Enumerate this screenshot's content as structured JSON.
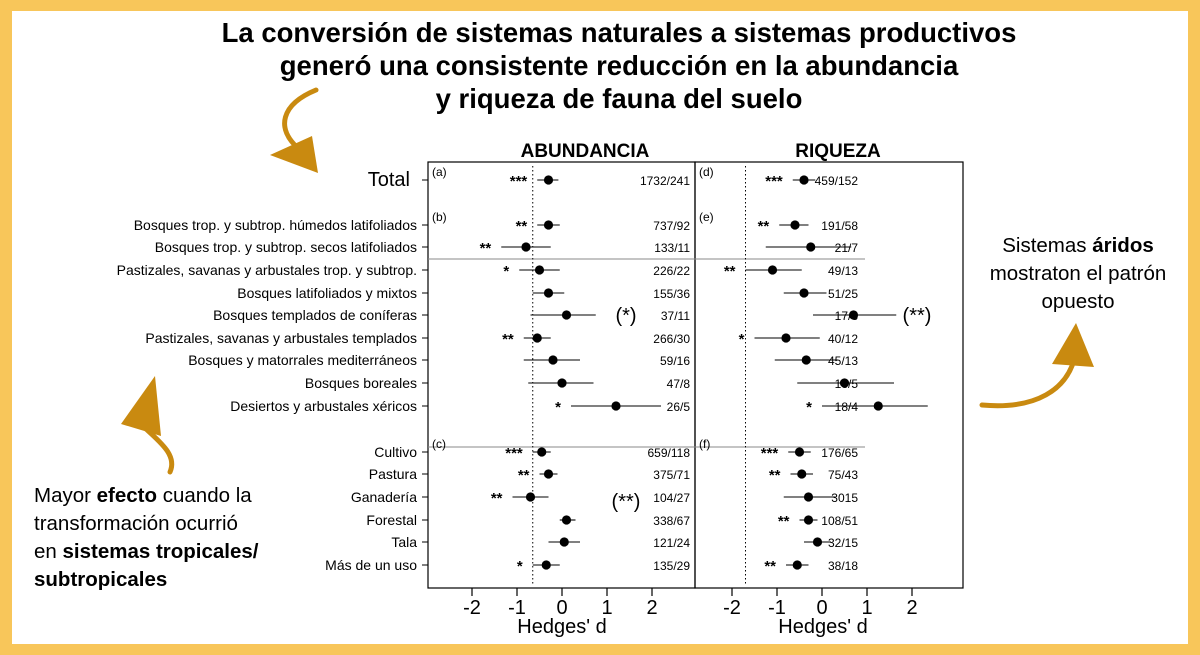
{
  "title": {
    "line1": "La conversión de sistemas naturales a sistemas productivos",
    "line2": "generó una consistente reducción en la abundancia",
    "line3": "y riqueza de fauna del suelo"
  },
  "colors": {
    "frame": "#f8c65a",
    "arrow": "#c98a10"
  },
  "note_left": {
    "t1": "Mayor ",
    "b1": "efecto",
    "t2": " cuando la",
    "line2": "transformación ocurrió",
    "t3": "en ",
    "b2": "sistemas tropicales/",
    "b3": "subtropicales"
  },
  "note_right": {
    "t1": "Sistemas ",
    "b1": "áridos",
    "line2": "mostraton el patrón",
    "line3": "opuesto"
  },
  "chart_data": {
    "type": "forest",
    "panels": [
      {
        "title": "ABUNDANCIA",
        "xlabel": "Hedges' d",
        "xlim": [
          -2.6,
          2.6
        ],
        "ticks": [
          "-2",
          "-1",
          "0",
          "1",
          "2"
        ],
        "ref_line": -0.65,
        "rows": [
          {
            "label": "Total",
            "est": -0.3,
            "lo": -0.55,
            "hi": -0.08,
            "sig": "***",
            "n": "1732/241",
            "panel_letter": "(a)"
          },
          {
            "label": "Bosques trop. y subtrop. húmedos latifoliados",
            "est": -0.3,
            "lo": -0.55,
            "hi": -0.05,
            "sig": "**",
            "n": "737/92",
            "panel_letter": "(b)"
          },
          {
            "label": "Bosques trop. y subtrop. secos latifoliados",
            "est": -0.8,
            "lo": -1.35,
            "hi": -0.25,
            "sig": "**",
            "n": "133/11"
          },
          {
            "label": "Pastizales, savanas y arbustales trop. y subtrop.",
            "est": -0.5,
            "lo": -0.95,
            "hi": -0.05,
            "sig": "*",
            "n": "226/22"
          },
          {
            "label": "Bosques latifoliados y mixtos",
            "est": -0.3,
            "lo": -0.65,
            "hi": 0.05,
            "sig": "",
            "n": "155/36"
          },
          {
            "label": "Bosques templados de coníferas",
            "est": 0.1,
            "lo": -0.7,
            "hi": 0.75,
            "sig": "",
            "n": "37/11",
            "group_sig": "(*)"
          },
          {
            "label": "Pastizales, savanas y arbustales templados",
            "est": -0.55,
            "lo": -0.85,
            "hi": -0.25,
            "sig": "**",
            "n": "266/30"
          },
          {
            "label": "Bosques y matorrales mediterráneos",
            "est": -0.2,
            "lo": -0.85,
            "hi": 0.4,
            "sig": "",
            "n": "59/16"
          },
          {
            "label": "Bosques boreales",
            "est": 0.0,
            "lo": -0.75,
            "hi": 0.7,
            "sig": "",
            "n": "47/8"
          },
          {
            "label": "Desiertos y arbustales xéricos",
            "est": 1.2,
            "lo": 0.2,
            "hi": 2.2,
            "sig": "*",
            "n": "26/5"
          },
          {
            "label": "Cultivo",
            "est": -0.45,
            "lo": -0.65,
            "hi": -0.25,
            "sig": "***",
            "n": "659/118",
            "panel_letter": "(c)"
          },
          {
            "label": "Pastura",
            "est": -0.3,
            "lo": -0.5,
            "hi": -0.1,
            "sig": "**",
            "n": "375/71"
          },
          {
            "label": "Ganadería",
            "est": -0.7,
            "lo": -1.1,
            "hi": -0.3,
            "sig": "**",
            "n": "104/27",
            "group_sig": "(**)"
          },
          {
            "label": "Forestal",
            "est": 0.1,
            "lo": -0.05,
            "hi": 0.3,
            "sig": "",
            "n": "338/67"
          },
          {
            "label": "Tala",
            "est": 0.05,
            "lo": -0.3,
            "hi": 0.4,
            "sig": "",
            "n": "121/24"
          },
          {
            "label": "Más de un uso",
            "est": -0.35,
            "lo": -0.65,
            "hi": -0.05,
            "sig": "*",
            "n": "135/29"
          }
        ]
      },
      {
        "title": "RIQUEZA",
        "xlabel": "Hedges' d",
        "xlim": [
          -2.6,
          2.6
        ],
        "ticks": [
          "-2",
          "-1",
          "0",
          "1",
          "2"
        ],
        "ref_line": -1.7,
        "rows": [
          {
            "est": -0.4,
            "lo": -0.65,
            "hi": -0.15,
            "sig": "***",
            "n": "459/152",
            "panel_letter": "(d)"
          },
          {
            "est": -0.6,
            "lo": -0.95,
            "hi": -0.3,
            "sig": "**",
            "n": "191/58",
            "panel_letter": "(e)"
          },
          {
            "est": -0.25,
            "lo": -1.25,
            "hi": 0.65,
            "sig": "",
            "n": "21/7"
          },
          {
            "est": -1.1,
            "lo": -1.7,
            "hi": -0.45,
            "sig": "**",
            "n": "49/13"
          },
          {
            "est": -0.4,
            "lo": -0.85,
            "hi": 0.1,
            "sig": "",
            "n": "51/25"
          },
          {
            "est": 0.7,
            "lo": -0.2,
            "hi": 1.65,
            "sig": "",
            "n": "17/8",
            "group_sig": "(**)"
          },
          {
            "est": -0.8,
            "lo": -1.5,
            "hi": -0.05,
            "sig": "*",
            "n": "40/12"
          },
          {
            "est": -0.35,
            "lo": -1.05,
            "hi": 0.35,
            "sig": "",
            "n": "45/13"
          },
          {
            "est": 0.5,
            "lo": -0.55,
            "hi": 1.6,
            "sig": "",
            "n": "13/5"
          },
          {
            "est": 1.25,
            "lo": 0.0,
            "hi": 2.35,
            "sig": "*",
            "n": "18/4"
          },
          {
            "est": -0.5,
            "lo": -0.75,
            "hi": -0.25,
            "sig": "***",
            "n": "176/65",
            "panel_letter": "(f)"
          },
          {
            "est": -0.45,
            "lo": -0.7,
            "hi": -0.2,
            "sig": "**",
            "n": "75/43"
          },
          {
            "est": -0.3,
            "lo": -0.85,
            "hi": 0.3,
            "sig": "",
            "n": "3015"
          },
          {
            "est": -0.3,
            "lo": -0.5,
            "hi": -0.1,
            "sig": "**",
            "n": "108/51"
          },
          {
            "est": -0.1,
            "lo": -0.4,
            "hi": 0.2,
            "sig": "",
            "n": "32/15"
          },
          {
            "est": -0.55,
            "lo": -0.8,
            "hi": -0.3,
            "sig": "**",
            "n": "38/18"
          }
        ]
      }
    ]
  }
}
